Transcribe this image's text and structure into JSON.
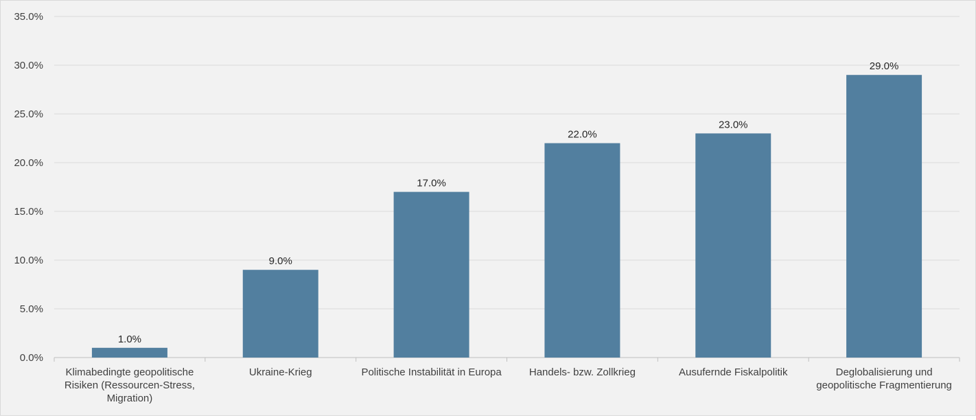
{
  "chart_data": {
    "type": "bar",
    "categories": [
      "Klimabedingte geopolitische Risiken (Ressourcen-Stress, Migration)",
      "Ukraine-Krieg",
      "Politische Instabilität in Europa",
      "Handels- bzw. Zollkrieg",
      "Ausufernde Fiskalpolitik",
      "Deglobalisierung und geopolitische Fragmentierung"
    ],
    "values": [
      1.0,
      9.0,
      17.0,
      22.0,
      23.0,
      29.0
    ],
    "data_labels": [
      "1.0%",
      "9.0%",
      "17.0%",
      "22.0%",
      "23.0%",
      "29.0%"
    ],
    "yticks": [
      0,
      5,
      10,
      15,
      20,
      25,
      30,
      35
    ],
    "ytick_labels": [
      "0.0%",
      "5.0%",
      "10.0%",
      "15.0%",
      "20.0%",
      "25.0%",
      "30.0%",
      "35.0%"
    ],
    "ylim": [
      0,
      35
    ],
    "grid": true,
    "legend": "none",
    "title": "",
    "xlabel": "",
    "ylabel": "",
    "colors": {
      "bar": "#527f9f",
      "grid": "#d9d9d9",
      "background": "#f2f2f2"
    }
  }
}
